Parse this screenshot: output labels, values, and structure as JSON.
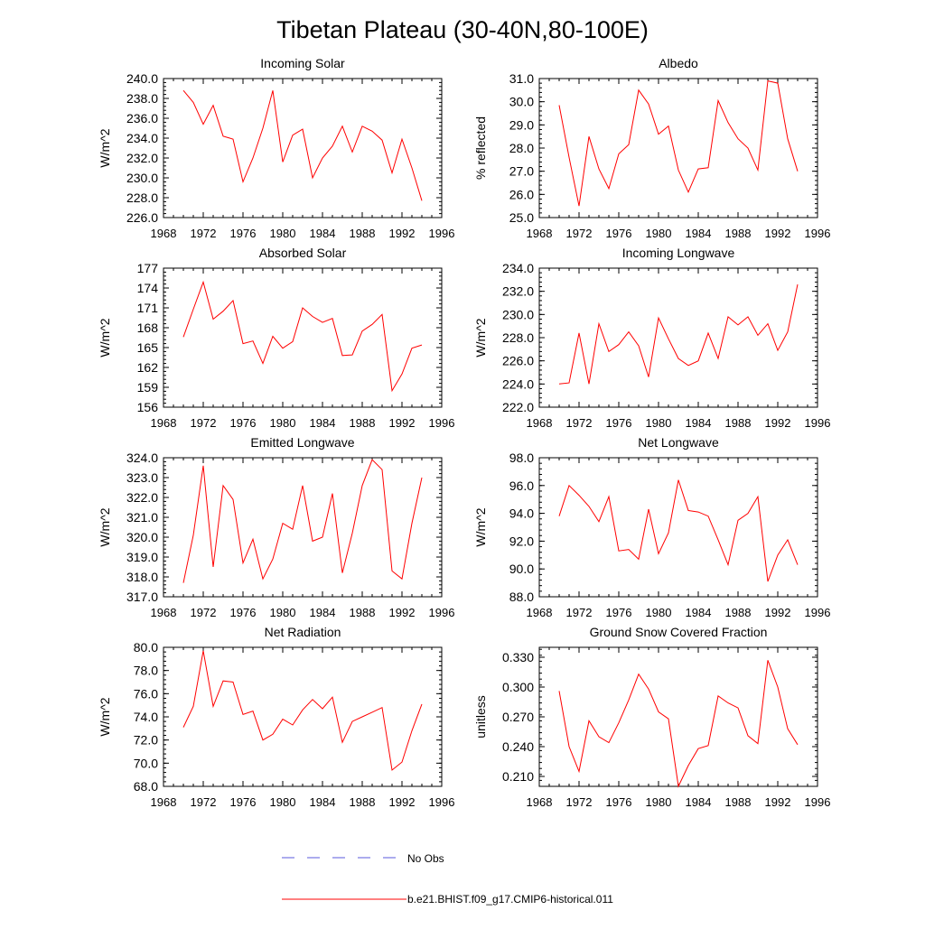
{
  "title": "Tibetan Plateau (30-40N,80-100E)",
  "legend": {
    "obs_label": "No Obs",
    "model_label": "b.e21.BHIST.f09_g17.CMIP6-historical.011",
    "obs_color": "#5a5adc",
    "model_color": "#ff0000"
  },
  "chart_data": [
    {
      "type": "line",
      "title": "Incoming Solar",
      "ylabel": "W/m^2",
      "xlim": [
        1968,
        1996
      ],
      "ylim": [
        226.0,
        240.0
      ],
      "x_ticks": [
        "1968",
        "1972",
        "1976",
        "1980",
        "1984",
        "1988",
        "1992",
        "1996"
      ],
      "y_ticks": [
        "226.0",
        "228.0",
        "230.0",
        "232.0",
        "234.0",
        "236.0",
        "238.0",
        "240.0"
      ],
      "x": [
        1970,
        1971,
        1972,
        1973,
        1974,
        1975,
        1976,
        1977,
        1978,
        1979,
        1980,
        1981,
        1982,
        1983,
        1984,
        1985,
        1986,
        1987,
        1988,
        1989,
        1990,
        1991,
        1992,
        1993,
        1994
      ],
      "series": [
        {
          "name": "b.e21.BHIST.f09_g17.CMIP6-historical.011",
          "color": "#ff0000",
          "values": [
            238.8,
            237.6,
            235.4,
            237.3,
            234.2,
            233.9,
            229.6,
            232.0,
            235.0,
            238.8,
            231.6,
            234.3,
            234.9,
            230.0,
            232.0,
            233.2,
            235.2,
            232.6,
            235.2,
            234.7,
            233.8,
            230.5,
            233.9,
            231.0,
            227.7
          ]
        }
      ]
    },
    {
      "type": "line",
      "title": "Albedo",
      "ylabel": "% reflected",
      "xlim": [
        1968,
        1996
      ],
      "ylim": [
        25.0,
        31.0
      ],
      "x_ticks": [
        "1968",
        "1972",
        "1976",
        "1980",
        "1984",
        "1988",
        "1992",
        "1996"
      ],
      "y_ticks": [
        "25.0",
        "26.0",
        "27.0",
        "28.0",
        "29.0",
        "30.0",
        "31.0"
      ],
      "x": [
        1970,
        1971,
        1972,
        1973,
        1974,
        1975,
        1976,
        1977,
        1978,
        1979,
        1980,
        1981,
        1982,
        1983,
        1984,
        1985,
        1986,
        1987,
        1988,
        1989,
        1990,
        1991,
        1992,
        1993,
        1994
      ],
      "series": [
        {
          "name": "b.e21.BHIST.f09_g17.CMIP6-historical.011",
          "color": "#ff0000",
          "values": [
            29.85,
            27.6,
            25.5,
            28.5,
            27.1,
            26.25,
            27.75,
            28.15,
            30.5,
            29.9,
            28.6,
            28.95,
            27.05,
            26.1,
            27.1,
            27.15,
            30.05,
            29.1,
            28.4,
            28.0,
            27.05,
            30.9,
            30.8,
            28.4,
            27.0
          ]
        }
      ]
    },
    {
      "type": "line",
      "title": "Absorbed Solar",
      "ylabel": "W/m^2",
      "xlim": [
        1968,
        1996
      ],
      "ylim": [
        156,
        177
      ],
      "x_ticks": [
        "1968",
        "1972",
        "1976",
        "1980",
        "1984",
        "1988",
        "1992",
        "1996"
      ],
      "y_ticks": [
        "156",
        "159",
        "162",
        "165",
        "168",
        "171",
        "174",
        "177"
      ],
      "x": [
        1970,
        1971,
        1972,
        1973,
        1974,
        1975,
        1976,
        1977,
        1978,
        1979,
        1980,
        1981,
        1982,
        1983,
        1984,
        1985,
        1986,
        1987,
        1988,
        1989,
        1990,
        1991,
        1992,
        1993,
        1994
      ],
      "series": [
        {
          "name": "b.e21.BHIST.f09_g17.CMIP6-historical.011",
          "color": "#ff0000",
          "values": [
            166.6,
            170.8,
            174.9,
            169.3,
            170.5,
            172.1,
            165.6,
            166.0,
            162.6,
            166.7,
            164.9,
            165.9,
            171.0,
            169.7,
            168.8,
            169.4,
            163.8,
            163.9,
            167.5,
            168.5,
            170.0,
            158.5,
            161.0,
            164.9,
            165.4
          ]
        }
      ]
    },
    {
      "type": "line",
      "title": "Incoming Longwave",
      "ylabel": "W/m^2",
      "xlim": [
        1968,
        1996
      ],
      "ylim": [
        222.0,
        234.0
      ],
      "x_ticks": [
        "1968",
        "1972",
        "1976",
        "1980",
        "1984",
        "1988",
        "1992",
        "1996"
      ],
      "y_ticks": [
        "222.0",
        "224.0",
        "226.0",
        "228.0",
        "230.0",
        "232.0",
        "234.0"
      ],
      "x": [
        1970,
        1971,
        1972,
        1973,
        1974,
        1975,
        1976,
        1977,
        1978,
        1979,
        1980,
        1981,
        1982,
        1983,
        1984,
        1985,
        1986,
        1987,
        1988,
        1989,
        1990,
        1991,
        1992,
        1993,
        1994
      ],
      "series": [
        {
          "name": "b.e21.BHIST.f09_g17.CMIP6-historical.011",
          "color": "#ff0000",
          "values": [
            224.0,
            224.1,
            228.4,
            224.0,
            229.2,
            226.8,
            227.4,
            228.5,
            227.3,
            224.6,
            229.7,
            227.9,
            226.2,
            225.6,
            226.0,
            228.4,
            226.2,
            229.8,
            229.1,
            229.8,
            228.2,
            229.2,
            226.9,
            228.5,
            232.6
          ]
        }
      ]
    },
    {
      "type": "line",
      "title": "Emitted Longwave",
      "ylabel": "W/m^2",
      "xlim": [
        1968,
        1996
      ],
      "ylim": [
        317.0,
        324.0
      ],
      "x_ticks": [
        "1968",
        "1972",
        "1976",
        "1980",
        "1984",
        "1988",
        "1992",
        "1996"
      ],
      "y_ticks": [
        "317.0",
        "318.0",
        "319.0",
        "320.0",
        "321.0",
        "322.0",
        "323.0",
        "324.0"
      ],
      "x": [
        1970,
        1971,
        1972,
        1973,
        1974,
        1975,
        1976,
        1977,
        1978,
        1979,
        1980,
        1981,
        1982,
        1983,
        1984,
        1985,
        1986,
        1987,
        1988,
        1989,
        1990,
        1991,
        1992,
        1993,
        1994
      ],
      "series": [
        {
          "name": "b.e21.BHIST.f09_g17.CMIP6-historical.011",
          "color": "#ff0000",
          "values": [
            317.7,
            320.1,
            323.6,
            318.5,
            322.6,
            321.9,
            318.7,
            319.9,
            317.9,
            318.9,
            320.7,
            320.4,
            322.6,
            319.8,
            320.0,
            322.2,
            318.2,
            320.2,
            322.6,
            323.9,
            323.4,
            318.3,
            317.9,
            320.7,
            323.0
          ]
        }
      ]
    },
    {
      "type": "line",
      "title": "Net Longwave",
      "ylabel": "W/m^2",
      "xlim": [
        1968,
        1996
      ],
      "ylim": [
        88.0,
        98.0
      ],
      "x_ticks": [
        "1968",
        "1972",
        "1976",
        "1980",
        "1984",
        "1988",
        "1992",
        "1996"
      ],
      "y_ticks": [
        "88.0",
        "90.0",
        "92.0",
        "94.0",
        "96.0",
        "98.0"
      ],
      "x": [
        1970,
        1971,
        1972,
        1973,
        1974,
        1975,
        1976,
        1977,
        1978,
        1979,
        1980,
        1981,
        1982,
        1983,
        1984,
        1985,
        1986,
        1987,
        1988,
        1989,
        1990,
        1991,
        1992,
        1993,
        1994
      ],
      "series": [
        {
          "name": "b.e21.BHIST.f09_g17.CMIP6-historical.011",
          "color": "#ff0000",
          "values": [
            93.8,
            96.0,
            95.3,
            94.5,
            93.4,
            95.2,
            91.3,
            91.4,
            90.7,
            94.3,
            91.1,
            92.6,
            96.4,
            94.2,
            94.1,
            93.8,
            92.1,
            90.3,
            93.5,
            94.0,
            95.2,
            89.1,
            91.0,
            92.1,
            90.3
          ]
        }
      ]
    },
    {
      "type": "line",
      "title": "Net Radiation",
      "ylabel": "W/m^2",
      "xlim": [
        1968,
        1996
      ],
      "ylim": [
        68.0,
        80.0
      ],
      "x_ticks": [
        "1968",
        "1972",
        "1976",
        "1980",
        "1984",
        "1988",
        "1992",
        "1996"
      ],
      "y_ticks": [
        "68.0",
        "70.0",
        "72.0",
        "74.0",
        "76.0",
        "78.0",
        "80.0"
      ],
      "x": [
        1970,
        1971,
        1972,
        1973,
        1974,
        1975,
        1976,
        1977,
        1978,
        1979,
        1980,
        1981,
        1982,
        1983,
        1984,
        1985,
        1986,
        1987,
        1988,
        1989,
        1990,
        1991,
        1992,
        1993,
        1994
      ],
      "series": [
        {
          "name": "b.e21.BHIST.f09_g17.CMIP6-historical.011",
          "color": "#ff0000",
          "values": [
            73.1,
            74.9,
            79.7,
            74.9,
            77.1,
            77.0,
            74.2,
            74.5,
            72.0,
            72.5,
            73.8,
            73.3,
            74.6,
            75.5,
            74.7,
            75.7,
            71.8,
            73.6,
            74.0,
            74.4,
            74.8,
            69.4,
            70.1,
            72.8,
            75.1
          ]
        }
      ]
    },
    {
      "type": "line",
      "title": "Ground Snow Covered Fraction",
      "ylabel": "unitless",
      "xlim": [
        1968,
        1996
      ],
      "ylim": [
        0.2,
        0.34
      ],
      "x_ticks": [
        "1968",
        "1972",
        "1976",
        "1980",
        "1984",
        "1988",
        "1992",
        "1996"
      ],
      "y_ticks": [
        "0.210",
        "0.240",
        "0.270",
        "0.300",
        "0.330"
      ],
      "x": [
        1970,
        1971,
        1972,
        1973,
        1974,
        1975,
        1976,
        1977,
        1978,
        1979,
        1980,
        1981,
        1982,
        1983,
        1984,
        1985,
        1986,
        1987,
        1988,
        1989,
        1990,
        1991,
        1992,
        1993,
        1994
      ],
      "series": [
        {
          "name": "b.e21.BHIST.f09_g17.CMIP6-historical.011",
          "color": "#ff0000",
          "values": [
            0.296,
            0.24,
            0.215,
            0.266,
            0.25,
            0.244,
            0.264,
            0.287,
            0.313,
            0.298,
            0.275,
            0.268,
            0.2,
            0.221,
            0.238,
            0.241,
            0.291,
            0.284,
            0.279,
            0.251,
            0.243,
            0.327,
            0.3,
            0.258,
            0.242
          ]
        }
      ]
    }
  ]
}
